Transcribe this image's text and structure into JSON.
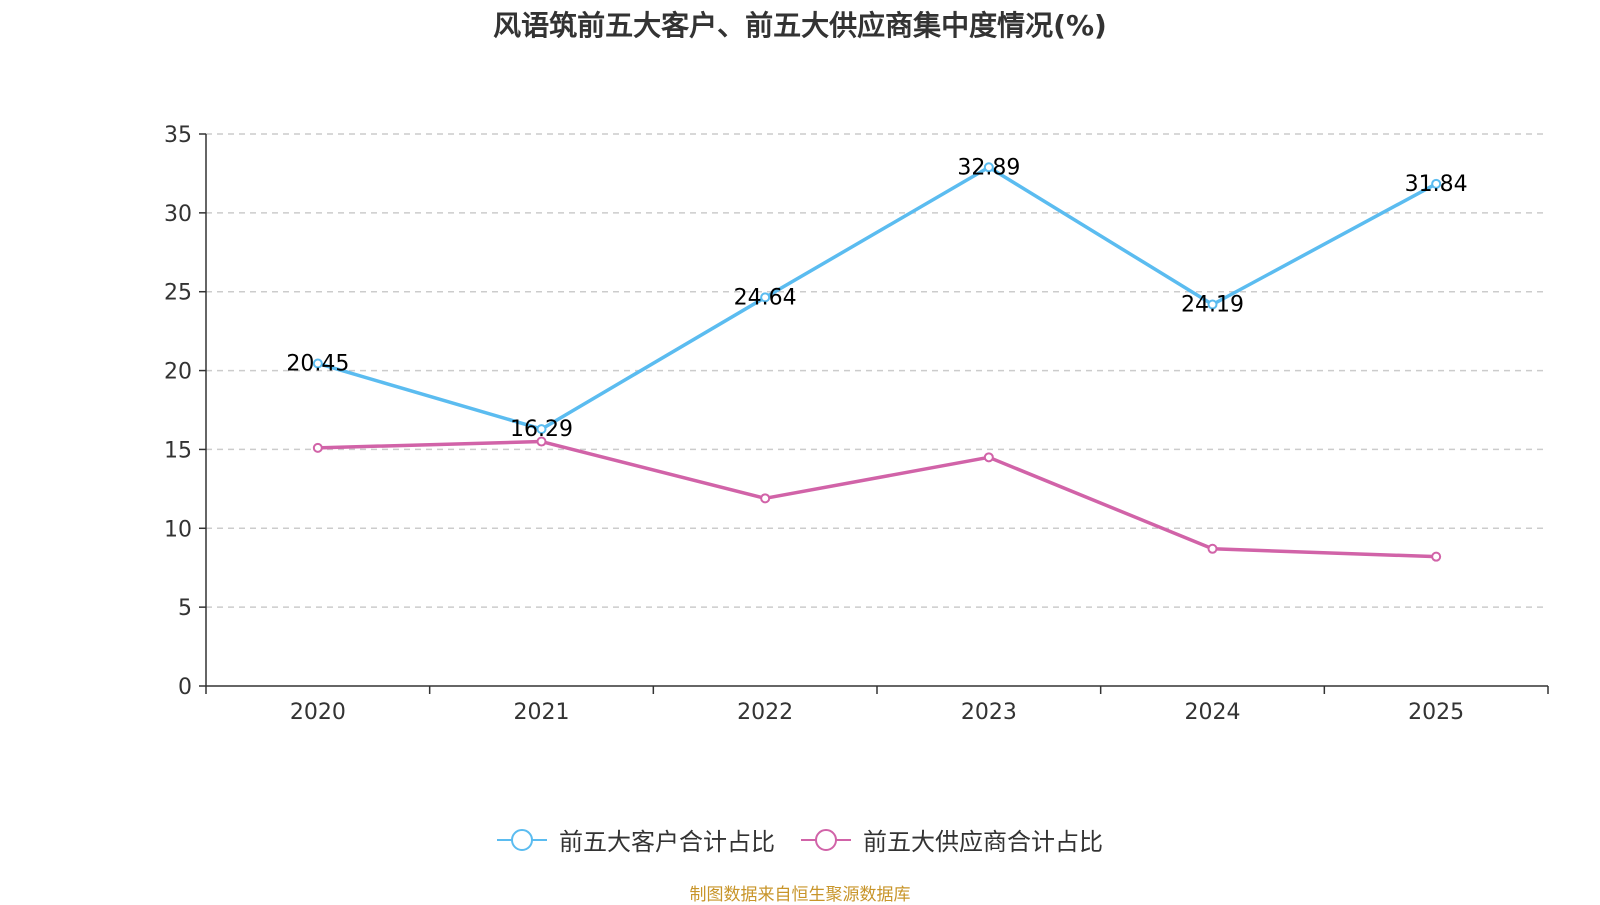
{
  "chart_data": {
    "type": "line",
    "title": "风语筑前五大客户、前五大供应商集中度情况(%)",
    "categories": [
      "2020",
      "2021",
      "2022",
      "2023",
      "2024",
      "2025"
    ],
    "ylim": [
      0,
      35
    ],
    "yticks": [
      0,
      5,
      10,
      15,
      20,
      25,
      30,
      35
    ],
    "grid": true,
    "legend_position": "bottom",
    "series": [
      {
        "name": "前五大客户合计占比",
        "color": "#5bbcf0",
        "values": [
          20.45,
          16.29,
          24.64,
          32.89,
          24.19,
          31.84
        ],
        "labels": [
          "20.45",
          "16.29",
          "24.64",
          "32.89",
          "24.19",
          "31.84"
        ]
      },
      {
        "name": "前五大供应商合计占比",
        "color": "#d163a8",
        "values": [
          15.1,
          15.5,
          11.9,
          14.5,
          8.7,
          8.2
        ],
        "labels": []
      }
    ]
  },
  "source_note": "制图数据来自恒生聚源数据库"
}
